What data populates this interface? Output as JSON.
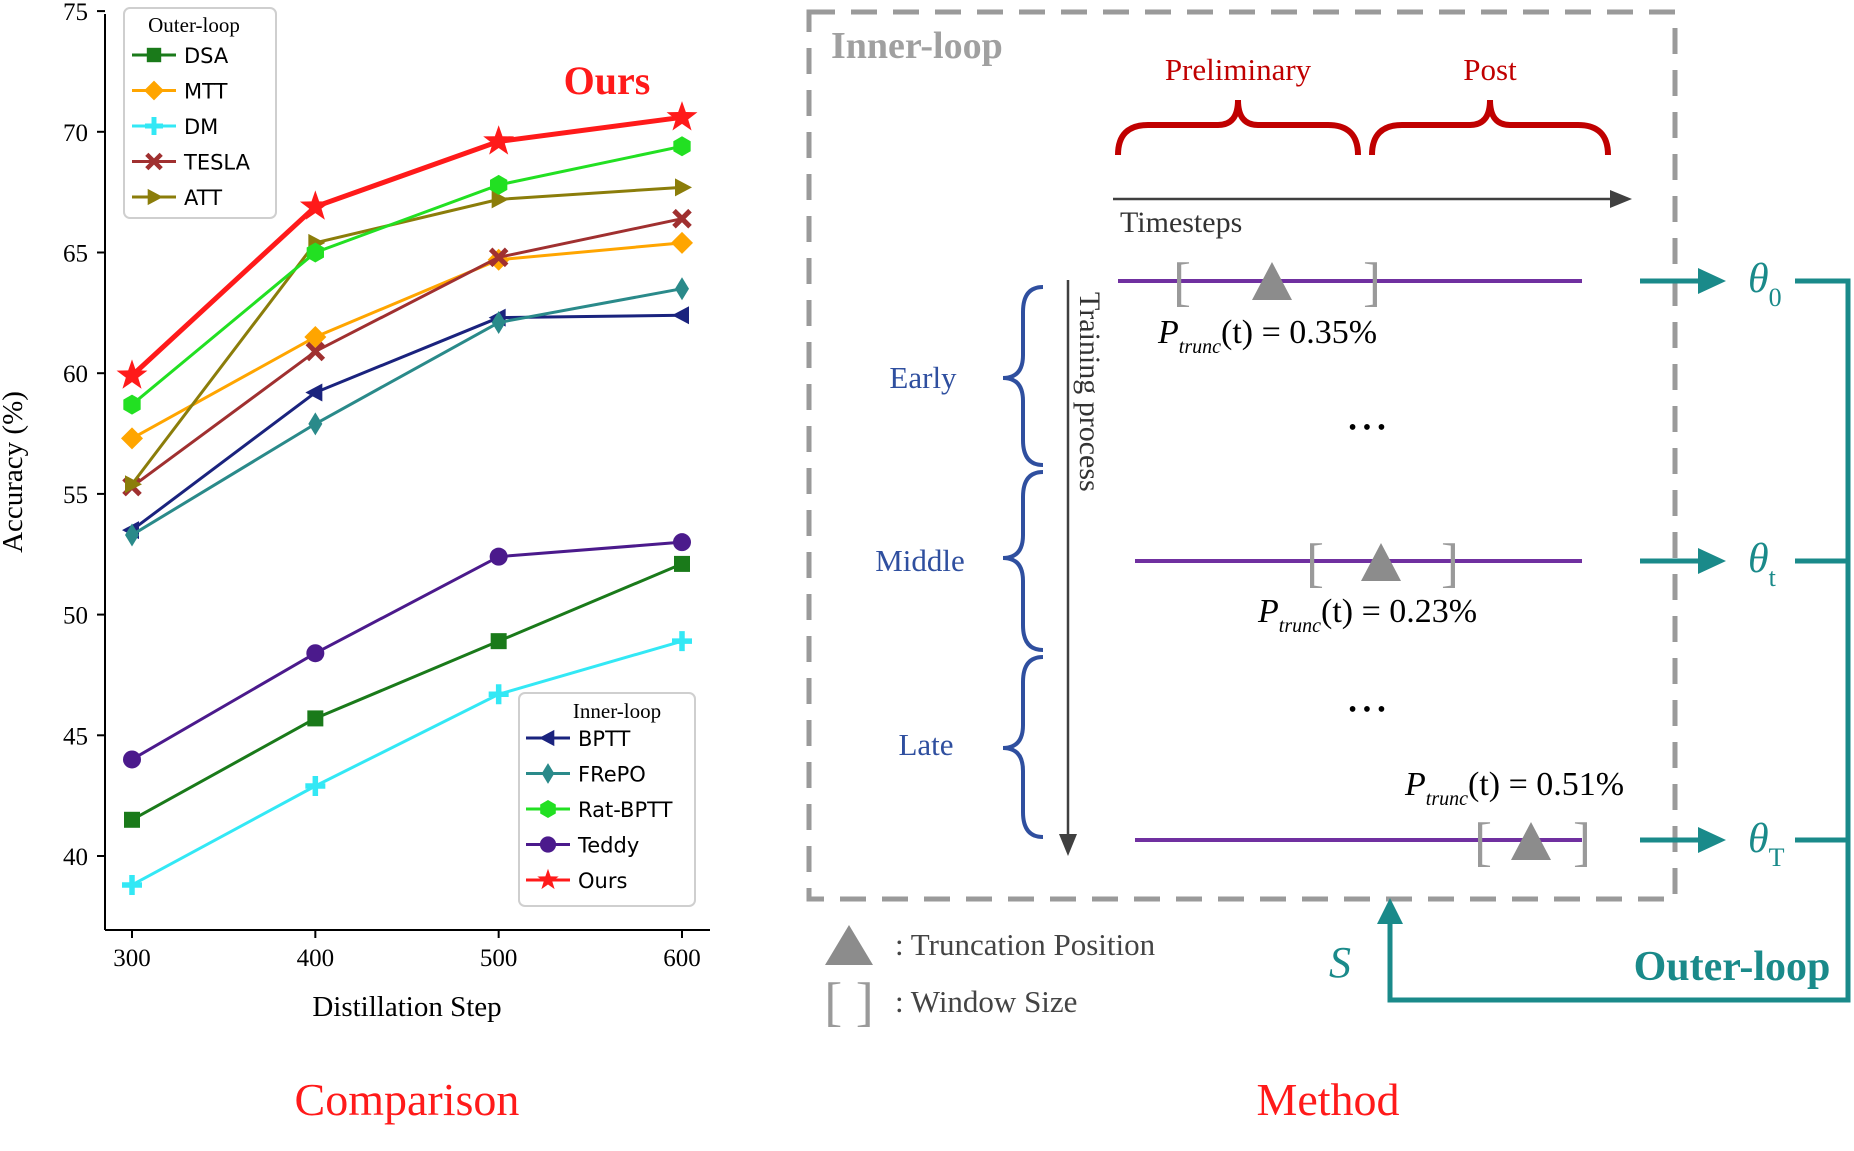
{
  "captions": {
    "left": "Comparison",
    "right": "Method"
  },
  "chart_data": {
    "type": "line",
    "title": "Ours",
    "xlabel": "Distillation Step",
    "ylabel": "Accuracy (%)",
    "x": [
      300,
      400,
      500,
      600
    ],
    "xticks": [
      "300",
      "400",
      "500",
      "600"
    ],
    "ylim": [
      37,
      75
    ],
    "yticks": [
      "40",
      "45",
      "50",
      "55",
      "60",
      "65",
      "70",
      "75"
    ],
    "legend_outer": {
      "title": "Outer-loop",
      "position": "top-left",
      "entries": [
        "DSA",
        "MTT",
        "DM",
        "TESLA",
        "ATT"
      ]
    },
    "legend_inner": {
      "title": "Inner-loop",
      "position": "bottom-right",
      "entries": [
        "BPTT",
        "FRePO",
        "Rat-BPTT",
        "Teddy",
        "Ours"
      ]
    },
    "series": [
      {
        "name": "DSA",
        "color": "#1a7a1a",
        "marker": "square",
        "values": [
          41.5,
          45.7,
          48.9,
          52.1
        ]
      },
      {
        "name": "MTT",
        "color": "#ffa500",
        "marker": "diamond",
        "values": [
          57.3,
          61.5,
          64.7,
          65.4
        ]
      },
      {
        "name": "DM",
        "color": "#33e8f5",
        "marker": "plus",
        "values": [
          38.8,
          42.9,
          46.7,
          48.9
        ]
      },
      {
        "name": "TESLA",
        "color": "#a03030",
        "marker": "x",
        "values": [
          55.3,
          60.9,
          64.8,
          66.4
        ]
      },
      {
        "name": "ATT",
        "color": "#8b7d0a",
        "marker": "triangle-right",
        "values": [
          55.4,
          65.4,
          67.2,
          67.7
        ]
      },
      {
        "name": "BPTT",
        "color": "#1a237e",
        "marker": "triangle-left",
        "values": [
          53.5,
          59.2,
          62.3,
          62.4
        ]
      },
      {
        "name": "FRePO",
        "color": "#2a8a8a",
        "marker": "thin-diamond",
        "values": [
          53.3,
          57.9,
          62.1,
          63.5
        ]
      },
      {
        "name": "Rat-BPTT",
        "color": "#22e022",
        "marker": "hexagon",
        "values": [
          58.7,
          65.0,
          67.8,
          69.4
        ]
      },
      {
        "name": "Teddy",
        "color": "#4b1a8c",
        "marker": "circle",
        "values": [
          44.0,
          48.4,
          52.4,
          53.0
        ]
      },
      {
        "name": "Ours",
        "color": "#ff1a1a",
        "marker": "star",
        "values": [
          59.9,
          66.9,
          69.6,
          70.6
        ]
      }
    ]
  },
  "diagram": {
    "inner_loop_label": "Inner-loop",
    "outer_loop_label": "Outer-loop",
    "preliminary_label": "Preliminary",
    "post_label": "Post",
    "timesteps_label": "Timesteps",
    "training_process_label": "Training process",
    "stages": [
      "Early",
      "Middle",
      "Late"
    ],
    "ellipsis": "• • •",
    "rows": [
      {
        "theta_base": "θ",
        "theta_sub": "0",
        "p_prefix": "P",
        "p_sub": "trunc",
        "p_rest": "(t) = 0.35%"
      },
      {
        "theta_base": "θ",
        "theta_sub": "t",
        "p_prefix": "P",
        "p_sub": "trunc",
        "p_rest": "(t) = 0.23%"
      },
      {
        "theta_base": "θ",
        "theta_sub": "T",
        "p_prefix": "P",
        "p_sub": "trunc",
        "p_rest": "(t) = 0.51%"
      }
    ],
    "s_label": "S",
    "legend_truncation": ":  Truncation Position",
    "legend_window": ":  Window Size",
    "colors": {
      "red": "#c00000",
      "teal": "#1a8a8a",
      "purple": "#7030a0",
      "blue": "#2f4f9f",
      "gray": "#9a9a9a"
    }
  }
}
